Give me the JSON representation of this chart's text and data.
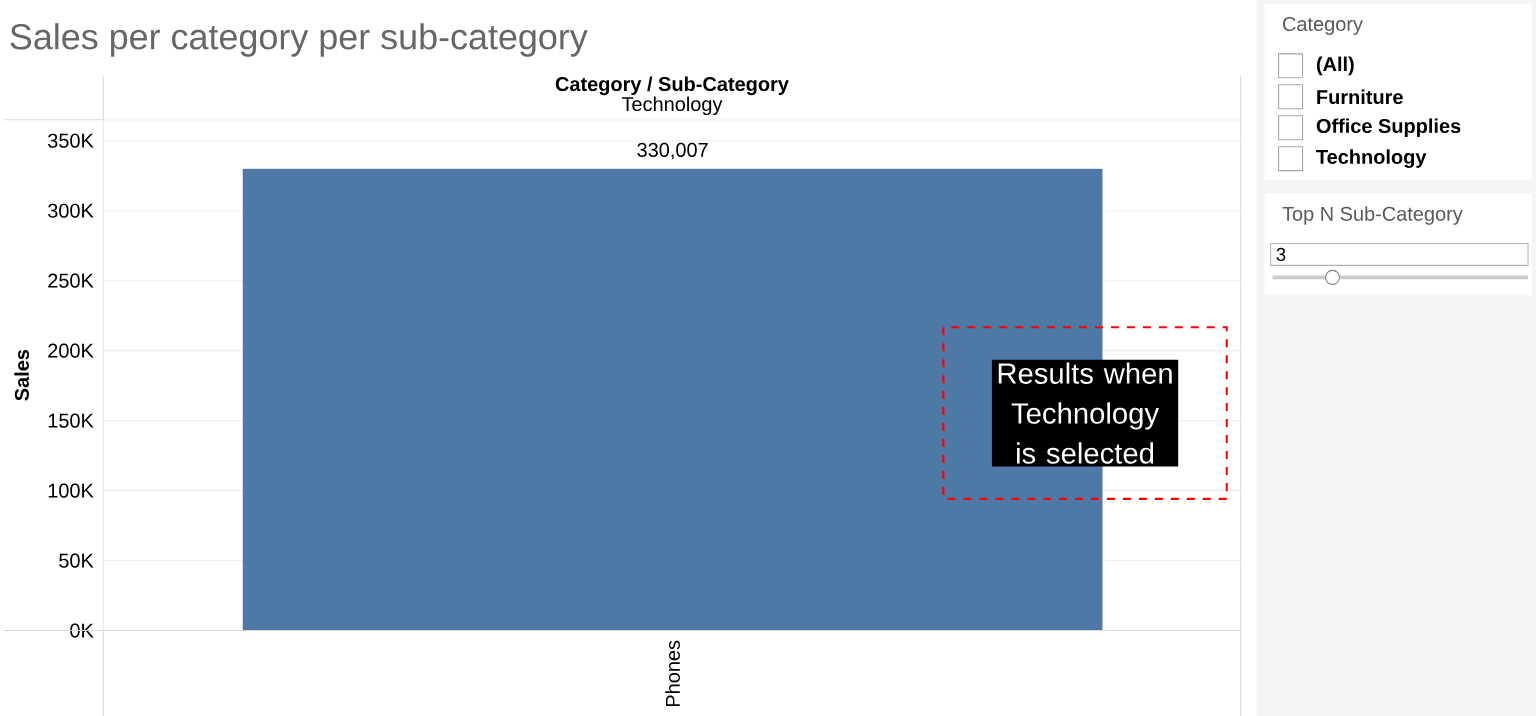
{
  "chart_data": {
    "type": "bar",
    "title": "Sales per category per sub-category",
    "ylabel": "Sales",
    "categories": [
      "Phones"
    ],
    "values": [
      330007
    ],
    "color": "#4e79a7",
    "value_labels": [
      "330,007"
    ],
    "ylim": [
      0,
      365000
    ],
    "yticks": [
      {
        "value": 0,
        "label": "0K"
      },
      {
        "value": 50000,
        "label": "50K"
      },
      {
        "value": 100000,
        "label": "100K"
      },
      {
        "value": 150000,
        "label": "150K"
      },
      {
        "value": 200000,
        "label": "200K"
      },
      {
        "value": 250000,
        "label": "250K"
      },
      {
        "value": 300000,
        "label": "300K"
      },
      {
        "value": 350000,
        "label": "350K"
      }
    ],
    "grid": "y",
    "annotations": [
      "Category / Sub-Category",
      "Technology",
      "Results when Technology is selected",
      "Category",
      "(All)",
      "Furniture",
      "Office Supplies",
      "Technology",
      "Top N Sub-Category",
      "3"
    ]
  }
}
